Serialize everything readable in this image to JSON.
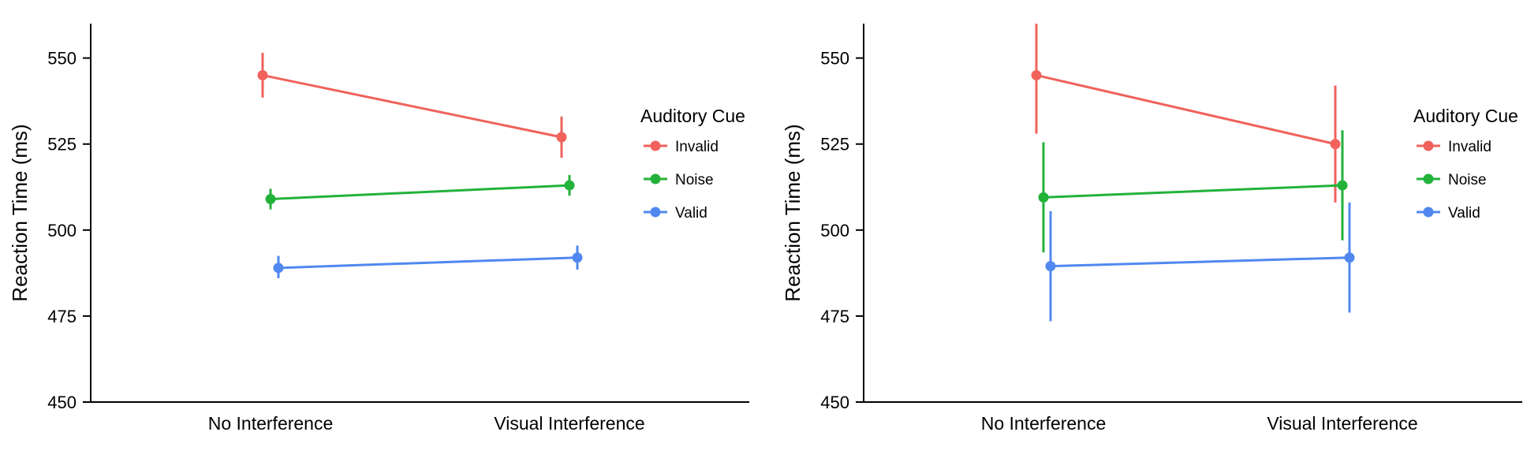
{
  "chart_data": [
    {
      "type": "line",
      "ylabel": "Reaction Time (ms)",
      "xlabel": "",
      "categories": [
        "No Interference",
        "Visual Interference"
      ],
      "ylim": [
        450,
        560
      ],
      "yticks": [
        450,
        475,
        500,
        525,
        550
      ],
      "legend": {
        "title": "Auditory Cue",
        "position": "right"
      },
      "error_bars": true,
      "series": [
        {
          "name": "Invalid",
          "color": "#F0625B",
          "values": [
            545,
            527
          ],
          "err_low": [
            538.5,
            521
          ],
          "err_high": [
            551.5,
            533
          ]
        },
        {
          "name": "Noise",
          "color": "#23B23A",
          "values": [
            509,
            513
          ],
          "err_low": [
            506,
            510
          ],
          "err_high": [
            512,
            516
          ]
        },
        {
          "name": "Valid",
          "color": "#5088F0",
          "values": [
            489,
            492
          ],
          "err_low": [
            486,
            488.5
          ],
          "err_high": [
            492.5,
            495.5
          ]
        }
      ]
    },
    {
      "type": "line",
      "ylabel": "Reaction Time (ms)",
      "xlabel": "",
      "categories": [
        "No Interference",
        "Visual Interference"
      ],
      "ylim": [
        450,
        560
      ],
      "yticks": [
        450,
        475,
        500,
        525,
        550
      ],
      "legend": {
        "title": "Auditory Cue",
        "position": "right"
      },
      "error_bars": true,
      "series": [
        {
          "name": "Invalid",
          "color": "#F0625B",
          "values": [
            545,
            525
          ],
          "err_low": [
            528,
            508
          ],
          "err_high": [
            560,
            542
          ]
        },
        {
          "name": "Noise",
          "color": "#23B23A",
          "values": [
            509.5,
            513
          ],
          "err_low": [
            493.5,
            497
          ],
          "err_high": [
            525.5,
            529
          ]
        },
        {
          "name": "Valid",
          "color": "#5088F0",
          "values": [
            489.5,
            492
          ],
          "err_low": [
            473.5,
            476
          ],
          "err_high": [
            505.5,
            508
          ]
        }
      ]
    }
  ]
}
